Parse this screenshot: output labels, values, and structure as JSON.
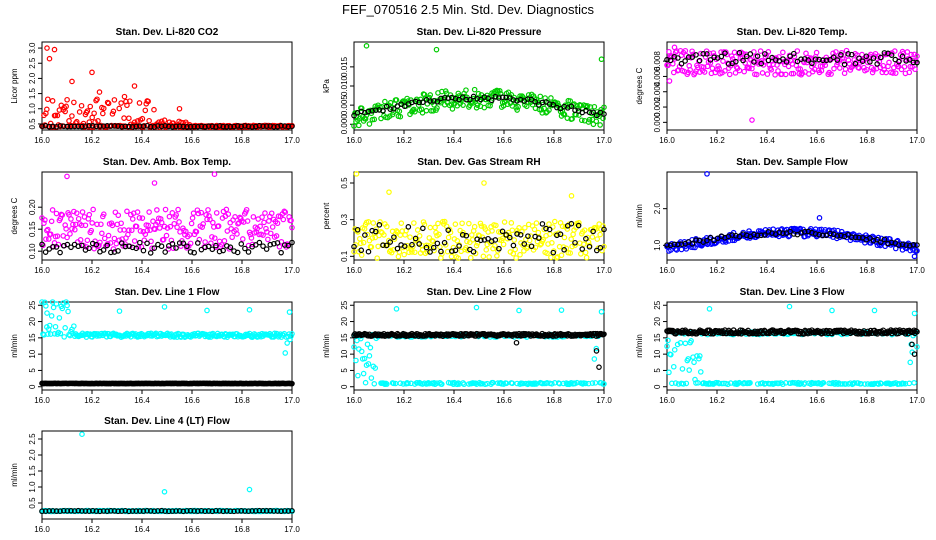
{
  "page": {
    "title": "FEF_070516  2.5 Min. Std. Dev. Diagnostics"
  },
  "chart_data": [
    {
      "type": "scatter",
      "title": "Stan. Dev. Li-820 CO2",
      "ylabel": "Licor ppm",
      "xlim": [
        16.0,
        17.0
      ],
      "ylim": [
        0.3,
        3.2
      ],
      "xticks": [
        "16.0",
        "16.2",
        "16.4",
        "16.6",
        "16.8",
        "17.0"
      ],
      "yticks": [
        {
          "v": 0.5,
          "t": "0.5"
        },
        {
          "v": 1.0,
          "t": "1.0"
        },
        {
          "v": 1.5,
          "t": "1.5"
        },
        {
          "v": 2.0,
          "t": "2.0"
        },
        {
          "v": 2.5,
          "t": "2.5"
        },
        {
          "v": 3.0,
          "t": "3.0"
        }
      ],
      "series": [
        {
          "color": "#ff0000",
          "base": 0.42,
          "spread": 0.03,
          "bursts": [
            {
              "from": 16.0,
              "to": 16.45,
              "max": 0.9
            },
            {
              "from": 16.45,
              "to": 16.6,
              "max": 0.2
            }
          ],
          "outliers": [
            [
              16.02,
              3.0
            ],
            [
              16.05,
              2.95
            ],
            [
              16.03,
              2.65
            ],
            [
              16.2,
              2.2
            ],
            [
              16.12,
              1.9
            ],
            [
              16.37,
              1.75
            ],
            [
              16.33,
              1.4
            ],
            [
              16.23,
              1.55
            ],
            [
              16.55,
              1.0
            ]
          ]
        },
        {
          "color": "#000000",
          "base": 0.42,
          "spread": 0.02,
          "sparse": true
        }
      ]
    },
    {
      "type": "scatter",
      "title": "Stan. Dev. Li-820 Pressure",
      "ylabel": "kPa",
      "xlim": [
        16.0,
        17.0
      ],
      "ylim": [
        -0.0015,
        0.0215
      ],
      "xticks": [
        "16.0",
        "16.2",
        "16.4",
        "16.6",
        "16.8",
        "17.0"
      ],
      "yticks": [
        {
          "v": 0.0,
          "t": "0.000"
        },
        {
          "v": 0.005,
          "t": "0.005"
        },
        {
          "v": 0.01,
          "t": "0.010"
        },
        {
          "v": 0.015,
          "t": "0.015"
        }
      ],
      "series": [
        {
          "color": "#00cc00",
          "curve": "hump",
          "base": 0.002,
          "peak": 0.0052,
          "spread": 0.0025,
          "outliers": [
            [
              16.05,
              0.0205
            ],
            [
              16.33,
              0.0195
            ],
            [
              16.99,
              0.017
            ],
            [
              16.01,
              0.002
            ]
          ]
        },
        {
          "color": "#000000",
          "curve": "hump",
          "base": 0.0028,
          "peak": 0.0045,
          "spread": 0.0006,
          "sparse": true
        }
      ]
    },
    {
      "type": "scatter",
      "title": "Stan. Dev. Li-820 Temp.",
      "ylabel": "degrees C",
      "xlim": [
        16.0,
        17.0
      ],
      "ylim": [
        -0.001,
        0.0105
      ],
      "xticks": [
        "16.0",
        "16.2",
        "16.4",
        "16.6",
        "16.8",
        "17.0"
      ],
      "yticks": [
        {
          "v": 0.0,
          "t": "0.000"
        },
        {
          "v": 0.002,
          "t": "0.002"
        },
        {
          "v": 0.004,
          "t": "0.004"
        },
        {
          "v": 0.006,
          "t": "0.006"
        },
        {
          "v": 0.008,
          "t": "0.008"
        }
      ],
      "series": [
        {
          "color": "#ff00ff",
          "base": 0.0078,
          "spread": 0.0016,
          "outliers": [
            [
              16.34,
              0.0003
            ],
            [
              16.03,
              0.0098
            ],
            [
              16.01,
              0.0054
            ]
          ]
        },
        {
          "color": "#000000",
          "base": 0.0083,
          "spread": 0.0008,
          "sparse": true
        }
      ]
    },
    {
      "type": "scatter",
      "title": "Stan. Dev. Amb. Box Temp.",
      "ylabel": "degrees C",
      "xlim": [
        16.0,
        17.0
      ],
      "ylim": [
        0.08,
        0.28
      ],
      "xticks": [
        "16.0",
        "16.2",
        "16.4",
        "16.6",
        "16.8",
        "17.0"
      ],
      "yticks": [
        {
          "v": 0.1,
          "t": "0.10"
        },
        {
          "v": 0.15,
          "t": "0.15"
        },
        {
          "v": 0.2,
          "t": "0.20"
        }
      ],
      "series": [
        {
          "color": "#ff00ff",
          "base": 0.15,
          "spread": 0.045,
          "outliers": [
            [
              16.69,
              0.275
            ],
            [
              16.45,
              0.255
            ],
            [
              16.1,
              0.27
            ]
          ]
        },
        {
          "color": "#000000",
          "base": 0.108,
          "spread": 0.012,
          "sparse": true
        }
      ]
    },
    {
      "type": "scatter",
      "title": "Stan. Dev. Gas Stream RH",
      "ylabel": "percent",
      "xlim": [
        16.0,
        17.0
      ],
      "ylim": [
        0.08,
        0.56
      ],
      "xticks": [
        "16.0",
        "16.2",
        "16.4",
        "16.6",
        "16.8",
        "17.0"
      ],
      "yticks": [
        {
          "v": 0.1,
          "t": "0.1"
        },
        {
          "v": 0.3,
          "t": "0.3"
        },
        {
          "v": 0.5,
          "t": "0.5"
        }
      ],
      "series": [
        {
          "color": "#ffff00",
          "base": 0.19,
          "spread": 0.1,
          "outliers": [
            [
              16.01,
              0.55
            ],
            [
              16.14,
              0.45
            ],
            [
              16.52,
              0.5
            ],
            [
              16.87,
              0.43
            ]
          ]
        },
        {
          "color": "#000000",
          "base": 0.2,
          "spread": 0.08,
          "sparse": true
        }
      ]
    },
    {
      "type": "scatter",
      "title": "Stan. Dev. Sample Flow",
      "ylabel": "ml/min",
      "xlim": [
        16.0,
        17.0
      ],
      "ylim": [
        0.6,
        3.0
      ],
      "xticks": [
        "16.0",
        "16.2",
        "16.4",
        "16.6",
        "16.8",
        "17.0"
      ],
      "yticks": [
        {
          "v": 1.0,
          "t": "1.0"
        },
        {
          "v": 2.0,
          "t": "2.0"
        }
      ],
      "series": [
        {
          "color": "#0000ff",
          "curve": "hump",
          "base": 0.95,
          "peak": 0.45,
          "spread": 0.12,
          "outliers": [
            [
              16.16,
              2.95
            ],
            [
              16.99,
              0.7
            ],
            [
              16.61,
              1.75
            ]
          ]
        },
        {
          "color": "#000000",
          "curve": "hump",
          "base": 1.0,
          "peak": 0.38,
          "spread": 0.05,
          "sparse": true
        }
      ]
    },
    {
      "type": "scatter",
      "title": "Stan. Dev. Line 1 Flow",
      "ylabel": "ml/min",
      "xlim": [
        16.0,
        17.0
      ],
      "ylim": [
        -1,
        26
      ],
      "xticks": [
        "16.0",
        "16.2",
        "16.4",
        "16.6",
        "16.8",
        "17.0"
      ],
      "yticks": [
        {
          "v": 0,
          "t": "0"
        },
        {
          "v": 5,
          "t": "5"
        },
        {
          "v": 10,
          "t": "10"
        },
        {
          "v": 15,
          "t": "15"
        },
        {
          "v": 20,
          "t": "20"
        },
        {
          "v": 25,
          "t": "25"
        }
      ],
      "series": [
        {
          "color": "#00ffff",
          "base": 15.8,
          "spread": 0.6,
          "warmup": [
            16.0,
            16.13
          ],
          "warmdown": [
            16.97,
            17.0
          ],
          "outliers": [
            [
              16.31,
              23.2
            ],
            [
              16.49,
              24.5
            ],
            [
              16.66,
              23.4
            ],
            [
              16.83,
              23.6
            ],
            [
              16.99,
              22.9
            ],
            [
              16.02,
              22.6
            ]
          ]
        },
        {
          "color": "#000000",
          "base": 1.0,
          "spread": 0.05
        }
      ]
    },
    {
      "type": "scatter",
      "title": "Stan. Dev. Line 2 Flow",
      "ylabel": "ml/min",
      "xlim": [
        16.0,
        17.0
      ],
      "ylim": [
        -1,
        26
      ],
      "xticks": [
        "16.0",
        "16.2",
        "16.4",
        "16.6",
        "16.8",
        "17.0"
      ],
      "yticks": [
        {
          "v": 0,
          "t": "0"
        },
        {
          "v": 5,
          "t": "5"
        },
        {
          "v": 10,
          "t": "10"
        },
        {
          "v": 15,
          "t": "15"
        },
        {
          "v": 20,
          "t": "20"
        },
        {
          "v": 25,
          "t": "25"
        }
      ],
      "series": [
        {
          "color": "#00ffff",
          "base": 1.0,
          "spread": 0.25,
          "upper": 15.6,
          "warmup": [
            16.0,
            16.12
          ],
          "warmdown": [
            16.96,
            17.0
          ],
          "outliers": [
            [
              16.17,
              23.9
            ],
            [
              16.49,
              24.3
            ],
            [
              16.66,
              23.4
            ],
            [
              16.83,
              23.5
            ],
            [
              16.99,
              23.0
            ]
          ]
        },
        {
          "color": "#000000",
          "base": 15.9,
          "spread": 0.4,
          "outliers": [
            [
              16.97,
              11.0
            ],
            [
              16.98,
              6.0
            ],
            [
              16.65,
              13.5
            ]
          ]
        }
      ]
    },
    {
      "type": "scatter",
      "title": "Stan. Dev. Line 3 Flow",
      "ylabel": "ml/min",
      "xlim": [
        16.0,
        17.0
      ],
      "ylim": [
        -1,
        26
      ],
      "xticks": [
        "16.0",
        "16.2",
        "16.4",
        "16.6",
        "16.8",
        "17.0"
      ],
      "yticks": [
        {
          "v": 0,
          "t": "0"
        },
        {
          "v": 5,
          "t": "5"
        },
        {
          "v": 10,
          "t": "10"
        },
        {
          "v": 15,
          "t": "15"
        },
        {
          "v": 20,
          "t": "20"
        },
        {
          "v": 25,
          "t": "25"
        }
      ],
      "series": [
        {
          "color": "#00ffff",
          "base": 1.0,
          "spread": 0.25,
          "upper": 16.4,
          "warmup": [
            16.0,
            16.14
          ],
          "warmdown": [
            16.97,
            17.0
          ],
          "outliers": [
            [
              16.17,
              23.9
            ],
            [
              16.49,
              24.6
            ],
            [
              16.66,
              23.4
            ],
            [
              16.83,
              23.4
            ],
            [
              16.99,
              22.5
            ]
          ]
        },
        {
          "color": "#000000",
          "base": 16.8,
          "spread": 0.6,
          "outliers": [
            [
              16.99,
              10.0
            ],
            [
              16.98,
              13.0
            ]
          ]
        }
      ]
    },
    {
      "type": "scatter",
      "title": "Stan. Dev. Line 4 (LT) Flow",
      "ylabel": "ml/min",
      "xlim": [
        16.0,
        17.0
      ],
      "ylim": [
        0.0,
        2.75
      ],
      "xticks": [
        "16.0",
        "16.2",
        "16.4",
        "16.6",
        "16.8",
        "17.0"
      ],
      "yticks": [
        {
          "v": 0.5,
          "t": "0.5"
        },
        {
          "v": 1.0,
          "t": "1.0"
        },
        {
          "v": 1.5,
          "t": "1.5"
        },
        {
          "v": 2.0,
          "t": "2.0"
        },
        {
          "v": 2.5,
          "t": "2.5"
        }
      ],
      "series": [
        {
          "color": "#00ffff",
          "base": 0.25,
          "spread": 0.015,
          "outliers": [
            [
              16.16,
              2.65
            ],
            [
              16.49,
              0.85
            ],
            [
              16.83,
              0.92
            ]
          ]
        },
        {
          "color": "#000000",
          "base": 0.25,
          "spread": 0.01,
          "sparse": true
        }
      ]
    }
  ]
}
